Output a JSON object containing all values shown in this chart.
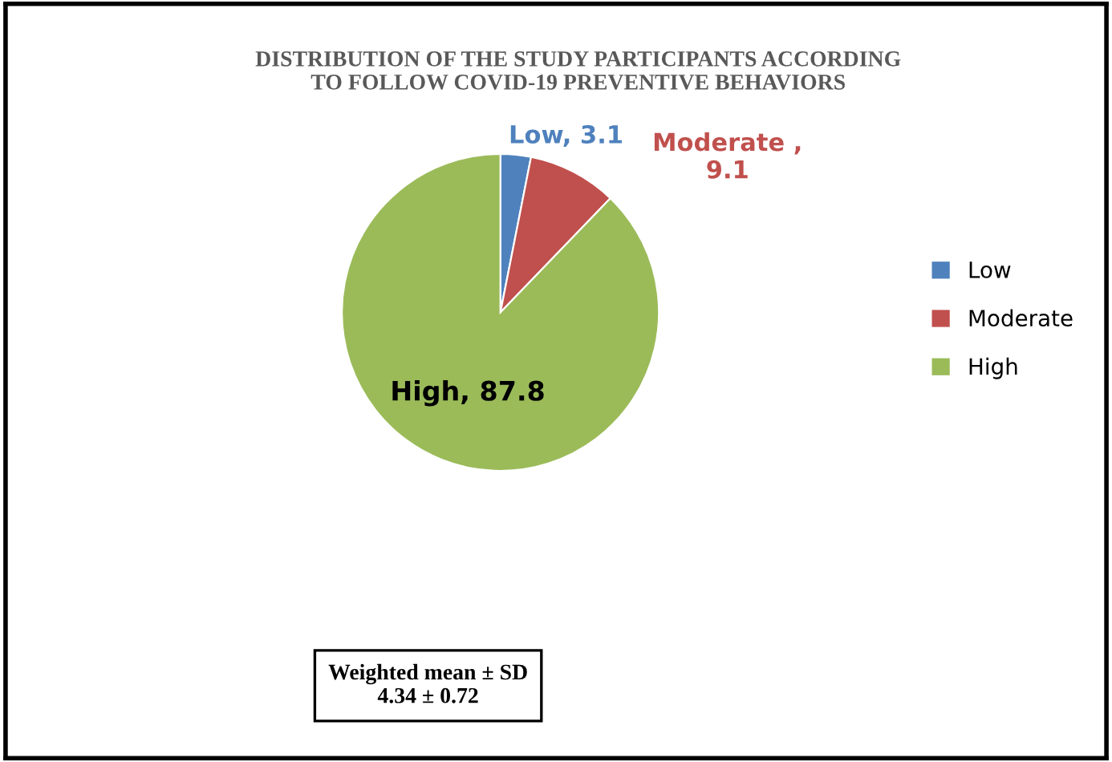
{
  "chart_data": {
    "type": "pie",
    "title": "DISTRIBUTION OF THE STUDY PARTICIPANTS ACCORDING\nTO FOLLOW COVID-19 PREVENTIVE BEHAVIORS",
    "categories": [
      "Low",
      "Moderate",
      "High"
    ],
    "values": [
      3.1,
      9.1,
      87.8
    ],
    "colors": [
      "#4f81bd",
      "#c0504d",
      "#9bbb59"
    ],
    "value_labels": [
      "Low, 3.1",
      "Moderate ,\n9.1",
      "High, 87.8"
    ],
    "legend": "right",
    "annotations": [
      "Weighted mean ± SD\n4.34 ± 0.72"
    ]
  }
}
